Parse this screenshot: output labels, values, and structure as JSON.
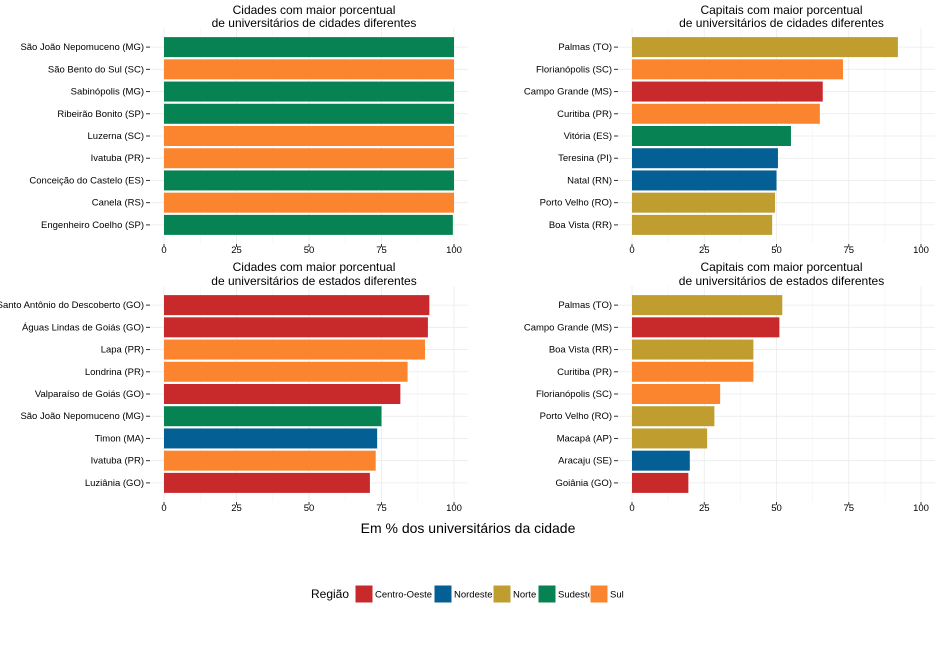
{
  "colors": {
    "Centro-Oeste": "#C8292A",
    "Nordeste": "#035F94",
    "Norte": "#BF9D2E",
    "Sudeste": "#078253",
    "Sul": "#FB852E"
  },
  "xlabel": "Em % dos universitários da cidade",
  "legend": {
    "title": "Região",
    "items": [
      "Centro-Oeste",
      "Nordeste",
      "Norte",
      "Sudeste",
      "Sul"
    ]
  },
  "chart_data": [
    {
      "type": "bar",
      "orientation": "horizontal",
      "title": [
        "Cidades com maior porcentual",
        "de universitários de cidades diferentes"
      ],
      "xlim": [
        0,
        100
      ],
      "xticks": [
        0,
        25,
        50,
        75,
        100
      ],
      "categories": [
        "São João Nepomuceno (MG)",
        "São Bento do Sul (SC)",
        "Sabinópolis (MG)",
        "Ribeirão Bonito (SP)",
        "Luzerna (SC)",
        "Ivatuba (PR)",
        "Conceição do Castelo (ES)",
        "Canela (RS)",
        "Engenheiro Coelho (SP)"
      ],
      "values": [
        100,
        100,
        100,
        100,
        100,
        100,
        100,
        100,
        99.6
      ],
      "regions": [
        "Sudeste",
        "Sul",
        "Sudeste",
        "Sudeste",
        "Sul",
        "Sul",
        "Sudeste",
        "Sul",
        "Sudeste"
      ]
    },
    {
      "type": "bar",
      "orientation": "horizontal",
      "title": [
        "Capitais com maior porcentual",
        "de universitários de cidades diferentes"
      ],
      "xlim": [
        0,
        100
      ],
      "xticks": [
        0,
        25,
        50,
        75,
        100
      ],
      "categories": [
        "Palmas (TO)",
        "Florianópolis (SC)",
        "Campo Grande (MS)",
        "Curitiba (PR)",
        "Vitória (ES)",
        "Teresina (PI)",
        "Natal (RN)",
        "Porto Velho (RO)",
        "Boa Vista (RR)"
      ],
      "values": [
        92,
        73,
        66,
        65,
        55,
        50.5,
        50,
        49.5,
        48.5
      ],
      "regions": [
        "Norte",
        "Sul",
        "Centro-Oeste",
        "Sul",
        "Sudeste",
        "Nordeste",
        "Nordeste",
        "Norte",
        "Norte"
      ]
    },
    {
      "type": "bar",
      "orientation": "horizontal",
      "title": [
        "Cidades com maior porcentual",
        "de universitários de estados diferentes"
      ],
      "xlim": [
        0,
        100
      ],
      "xticks": [
        0,
        25,
        50,
        75,
        100
      ],
      "categories": [
        "Santo Antônio do Descoberto (GO)",
        "Águas Lindas de Goiás (GO)",
        "Lapa (PR)",
        "Londrina (PR)",
        "Valparaíso de Goiás (GO)",
        "São João Nepomuceno (MG)",
        "Timon (MA)",
        "Ivatuba (PR)",
        "Luziânia (GO)"
      ],
      "values": [
        91.5,
        91,
        90,
        84,
        81.5,
        75,
        73.5,
        73,
        71
      ],
      "regions": [
        "Centro-Oeste",
        "Centro-Oeste",
        "Sul",
        "Sul",
        "Centro-Oeste",
        "Sudeste",
        "Nordeste",
        "Sul",
        "Centro-Oeste"
      ]
    },
    {
      "type": "bar",
      "orientation": "horizontal",
      "title": [
        "Capitais com maior porcentual",
        "de universitários de estados diferentes"
      ],
      "xlim": [
        0,
        100
      ],
      "xticks": [
        0,
        25,
        50,
        75,
        100
      ],
      "categories": [
        "Palmas (TO)",
        "Campo Grande (MS)",
        "Boa Vista (RR)",
        "Curitiba (PR)",
        "Florianópolis (SC)",
        "Porto Velho (RO)",
        "Macapá (AP)",
        "Aracaju (SE)",
        "Goiânia (GO)"
      ],
      "values": [
        52,
        51,
        42,
        42,
        30.5,
        28.5,
        26,
        20,
        19.5
      ],
      "regions": [
        "Norte",
        "Centro-Oeste",
        "Norte",
        "Sul",
        "Sul",
        "Norte",
        "Norte",
        "Nordeste",
        "Centro-Oeste"
      ]
    }
  ]
}
